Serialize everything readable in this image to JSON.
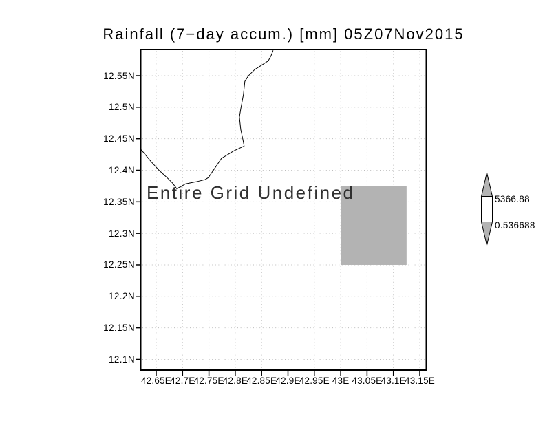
{
  "chart_data": {
    "type": "map",
    "title": "Rainfall (7−day accum.) [mm] 05Z07Nov2015",
    "annotation": "Entire Grid Undefined",
    "grid": "dotted",
    "x_axis": {
      "tick_values": [
        42.65,
        42.7,
        42.75,
        42.8,
        42.85,
        42.9,
        42.95,
        43.0,
        43.05,
        43.1,
        43.15
      ],
      "tick_labels": [
        "42.65E",
        "42.7E",
        "42.75E",
        "42.8E",
        "42.85E",
        "42.9E",
        "42.95E",
        "43E",
        "43.05E",
        "43.1E",
        "43.15E"
      ],
      "lim": [
        42.621,
        43.163
      ]
    },
    "y_axis": {
      "tick_values": [
        12.55,
        12.5,
        12.45,
        12.4,
        12.35,
        12.3,
        12.25,
        12.2,
        12.15,
        12.1
      ],
      "tick_labels": [
        "12.55N",
        "12.5N",
        "12.45N",
        "12.4N",
        "12.35N",
        "12.3N",
        "12.25N",
        "12.2N",
        "12.15N",
        "12.1N"
      ],
      "lim": [
        12.083,
        12.59
      ]
    },
    "undefined_region": {
      "lon_range": [
        43.0,
        43.125
      ],
      "lat_range": [
        12.25,
        12.375
      ]
    },
    "coastline_lonlat": [
      [
        42.621,
        12.433
      ],
      [
        42.6406,
        12.4134
      ],
      [
        42.655,
        12.4003
      ],
      [
        42.6719,
        12.3872
      ],
      [
        42.6811,
        12.3796
      ],
      [
        42.6889,
        12.3708
      ],
      [
        42.6967,
        12.3741
      ],
      [
        42.7059,
        12.3785
      ],
      [
        42.7255,
        12.3817
      ],
      [
        42.7425,
        12.385
      ],
      [
        42.749,
        12.3883
      ],
      [
        42.7738,
        12.4188
      ],
      [
        42.7973,
        12.4308
      ],
      [
        42.8169,
        12.4384
      ],
      [
        42.8143,
        12.4493
      ],
      [
        42.8104,
        12.4646
      ],
      [
        42.8078,
        12.4842
      ],
      [
        42.8104,
        12.4973
      ],
      [
        42.8156,
        12.5202
      ],
      [
        42.8182,
        12.5409
      ],
      [
        42.8248,
        12.5497
      ],
      [
        42.8365,
        12.5595
      ],
      [
        42.8509,
        12.5671
      ],
      [
        42.8626,
        12.5736
      ],
      [
        42.8678,
        12.5813
      ],
      [
        42.8718,
        12.59
      ]
    ],
    "colorbar": {
      "top_label": "5366.88",
      "bottom_label": "0.536688"
    }
  },
  "colors": {
    "background": "#ffffff",
    "frame": "#000000",
    "grid": "#bcbcbc",
    "coastline": "#000000",
    "region_fill": "#b3b3b3",
    "arrow_fill": "#b3b3b3",
    "colorbar_box_fill": "#ffffff",
    "tick_text": "#000000",
    "annotation_text": "#303030"
  }
}
